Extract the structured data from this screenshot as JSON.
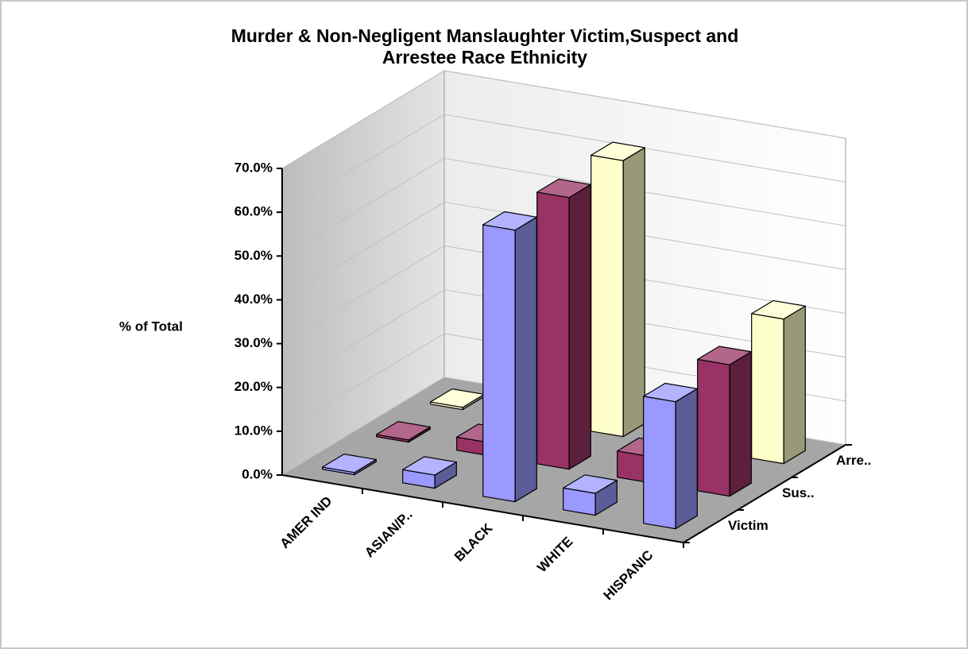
{
  "chart_data": {
    "type": "bar3d",
    "title": "Murder & Non-Negligent Manslaughter Victim,Suspect and Arrestee Race Ethnicity",
    "y_label": "% of Total",
    "categories": [
      "AMER IND",
      "ASIAN/P..",
      "BLACK",
      "WHITE",
      "HISPANIC"
    ],
    "series": [
      {
        "name": "Victim",
        "color": "#9999ff",
        "values": [
          0.5,
          3,
          62,
          5,
          29
        ]
      },
      {
        "name": "Sus..",
        "color": "#993366",
        "values": [
          0.5,
          3,
          62,
          6,
          30
        ]
      },
      {
        "name": "Arre..",
        "color": "#ffffcc",
        "values": [
          0.5,
          2,
          63,
          6.5,
          33
        ]
      }
    ],
    "ylim": [
      0,
      70
    ],
    "yticks": [
      {
        "value": 0,
        "label": "0.0%"
      },
      {
        "value": 10,
        "label": "10.0%"
      },
      {
        "value": 20,
        "label": "20.0%"
      },
      {
        "value": 30,
        "label": "30.0%"
      },
      {
        "value": 40,
        "label": "40.0%"
      },
      {
        "value": 50,
        "label": "50.0%"
      },
      {
        "value": 60,
        "label": "60.0%"
      },
      {
        "value": 70,
        "label": "70.0%"
      }
    ],
    "grid": true
  }
}
